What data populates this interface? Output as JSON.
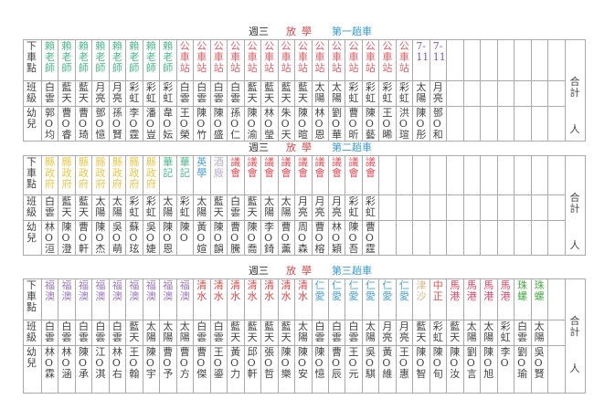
{
  "row_labels": {
    "stop": "下車點",
    "class": "班級",
    "kid": "幼兒"
  },
  "total_label": {
    "top": "合計",
    "bottom": "人"
  },
  "stop_colors": {
    "賴老師": "#4cb889",
    "公車站": "#e06068",
    "7-11": "#7a5ab8",
    "縣政府": "#e8c64a",
    "華記": "#4fb890",
    "英學": "#4a9ed4",
    "酒廠": "#b8b0c8",
    "議會": "#e0505a",
    "福澳": "#9a78c0",
    "清水": "#d84848",
    "仁愛": "#4a9ed4",
    "津沙": "#d8b888",
    "中正": "#e05058",
    "馬港": "#e04868",
    "珠螺": "#48a848"
  },
  "tables": [
    {
      "title": {
        "day": "週三",
        "departure": "放學",
        "run": "第一趟車"
      },
      "columns": [
        [
          "賴老師",
          "白雲",
          "郭O均"
        ],
        [
          "賴老師",
          "藍天",
          "曹O睿"
        ],
        [
          "賴老師",
          "藍天",
          "曹O琦"
        ],
        [
          "賴老師",
          "月亮",
          "鄧O憶"
        ],
        [
          "賴老師",
          "月亮",
          "孫O賢"
        ],
        [
          "賴老師",
          "彩虹",
          "李O霆"
        ],
        [
          "賴老師",
          "彩虹",
          "潘O豈"
        ],
        [
          "賴老師",
          "彩虹",
          "韋O妘"
        ],
        [
          "公車站",
          "白雲",
          "王O榮"
        ],
        [
          "公車站",
          "白雲",
          "陳O竹"
        ],
        [
          "公車站",
          "白雲",
          "陳O盛"
        ],
        [
          "公車站",
          "白雲",
          "孫O仁"
        ],
        [
          "公車站",
          "藍天",
          "陳O渝"
        ],
        [
          "公車站",
          "藍天",
          "林O瑩"
        ],
        [
          "公車站",
          "藍天",
          "朱O天"
        ],
        [
          "公車站",
          "藍天",
          "陳O暄"
        ],
        [
          "公車站",
          "太陽",
          "林O恩"
        ],
        [
          "公車站",
          "太陽",
          "劉O華"
        ],
        [
          "公車站",
          "彩虹",
          "曹O昕"
        ],
        [
          "公車站",
          "彩虹",
          "陳O藝"
        ],
        [
          "公車站",
          "彩虹",
          "王O晞"
        ],
        [
          "公車站",
          "彩虹",
          "洪O瑄"
        ],
        [
          "7-11",
          "太陽",
          "陳O彤"
        ],
        [
          "7-11",
          "月亮",
          "鄧O和"
        ]
      ]
    },
    {
      "title": {
        "day": "週三",
        "departure": "放學",
        "run": "第二趟車"
      },
      "columns": [
        [
          "縣政府",
          "白雲",
          "林O洹"
        ],
        [
          "縣政府",
          "藍天",
          "陳O澄"
        ],
        [
          "縣政府",
          "藍天",
          "曹O軒"
        ],
        [
          "縣政府",
          "太陽",
          "陳O杰"
        ],
        [
          "縣政府",
          "太陽",
          "吳O萌"
        ],
        [
          "縣政府",
          "彩虹",
          "蘇O玹"
        ],
        [
          "縣政府",
          "彩虹",
          "吳O婕"
        ],
        [
          "華記",
          "太陽",
          "陳O恩"
        ],
        [
          "華記",
          "彩虹",
          "陳O"
        ],
        [
          "英學",
          "太陽",
          "黃O媗"
        ],
        [
          "酒廠",
          "藍天",
          "陳O韻"
        ],
        [
          "議會",
          "白雲",
          "曹O騰"
        ],
        [
          "議會",
          "藍天",
          "陳O喬"
        ],
        [
          "議會",
          "太陽",
          "李O錡"
        ],
        [
          "議會",
          "太陽",
          "曹O薰"
        ],
        [
          "議會",
          "月亮",
          "周O森"
        ],
        [
          "議會",
          "月亮",
          "曹O榕"
        ],
        [
          "議會",
          "月亮",
          "林O穎"
        ],
        [
          "議會",
          "彩虹",
          "陳O吾"
        ],
        [
          "議會",
          "彩虹",
          "曹O霆"
        ]
      ]
    },
    {
      "title": {
        "day": "週三",
        "departure": "放學",
        "run": "第三趟車"
      },
      "columns": [
        [
          "福澳",
          "白雲",
          "林O霖"
        ],
        [
          "福澳",
          "白雲",
          "林O涵"
        ],
        [
          "福澳",
          "白雲",
          "陳O承"
        ],
        [
          "福澳",
          "白雲",
          "江O淇"
        ],
        [
          "福澳",
          "白雲",
          "林O右"
        ],
        [
          "福澳",
          "藍天",
          "王O翰"
        ],
        [
          "福澳",
          "太陽",
          "陳O宇"
        ],
        [
          "福澳",
          "太陽",
          "曹O予"
        ],
        [
          "福澳",
          "太陽",
          "曹O方"
        ],
        [
          "清水",
          "白雲",
          "曹O傑"
        ],
        [
          "清水",
          "白雲",
          "王O鎏"
        ],
        [
          "清水",
          "藍天",
          "黃O力"
        ],
        [
          "清水",
          "藍天",
          "邱O軒"
        ],
        [
          "清水",
          "藍天",
          "張O哲"
        ],
        [
          "清水",
          "藍天",
          "陳O樂"
        ],
        [
          "清水",
          "太陽",
          "陳O安"
        ],
        [
          "仁愛",
          "白雲",
          "陳O憶"
        ],
        [
          "仁愛",
          "白雲",
          "曹O辰"
        ],
        [
          "仁愛",
          "白雲",
          "王O元"
        ],
        [
          "仁愛",
          "太陽",
          "吳O騏"
        ],
        [
          "仁愛",
          "月亮",
          "黃O維"
        ],
        [
          "仁愛",
          "月亮",
          "王O惠"
        ],
        [
          "津沙",
          "藍天",
          "陳O智"
        ],
        [
          "中正",
          "彩虹",
          "陳O旬"
        ],
        [
          "馬港",
          "藍天",
          "陳O汝"
        ],
        [
          "馬港",
          "太陽",
          "劉O言"
        ],
        [
          "馬港",
          "太陽",
          "陳O旭"
        ],
        [
          "馬港",
          "彩虹",
          "李O"
        ],
        [
          "珠螺",
          "白雲",
          "劉O瑜"
        ],
        [
          "珠螺",
          "太陽",
          "吳O賢"
        ]
      ]
    }
  ]
}
